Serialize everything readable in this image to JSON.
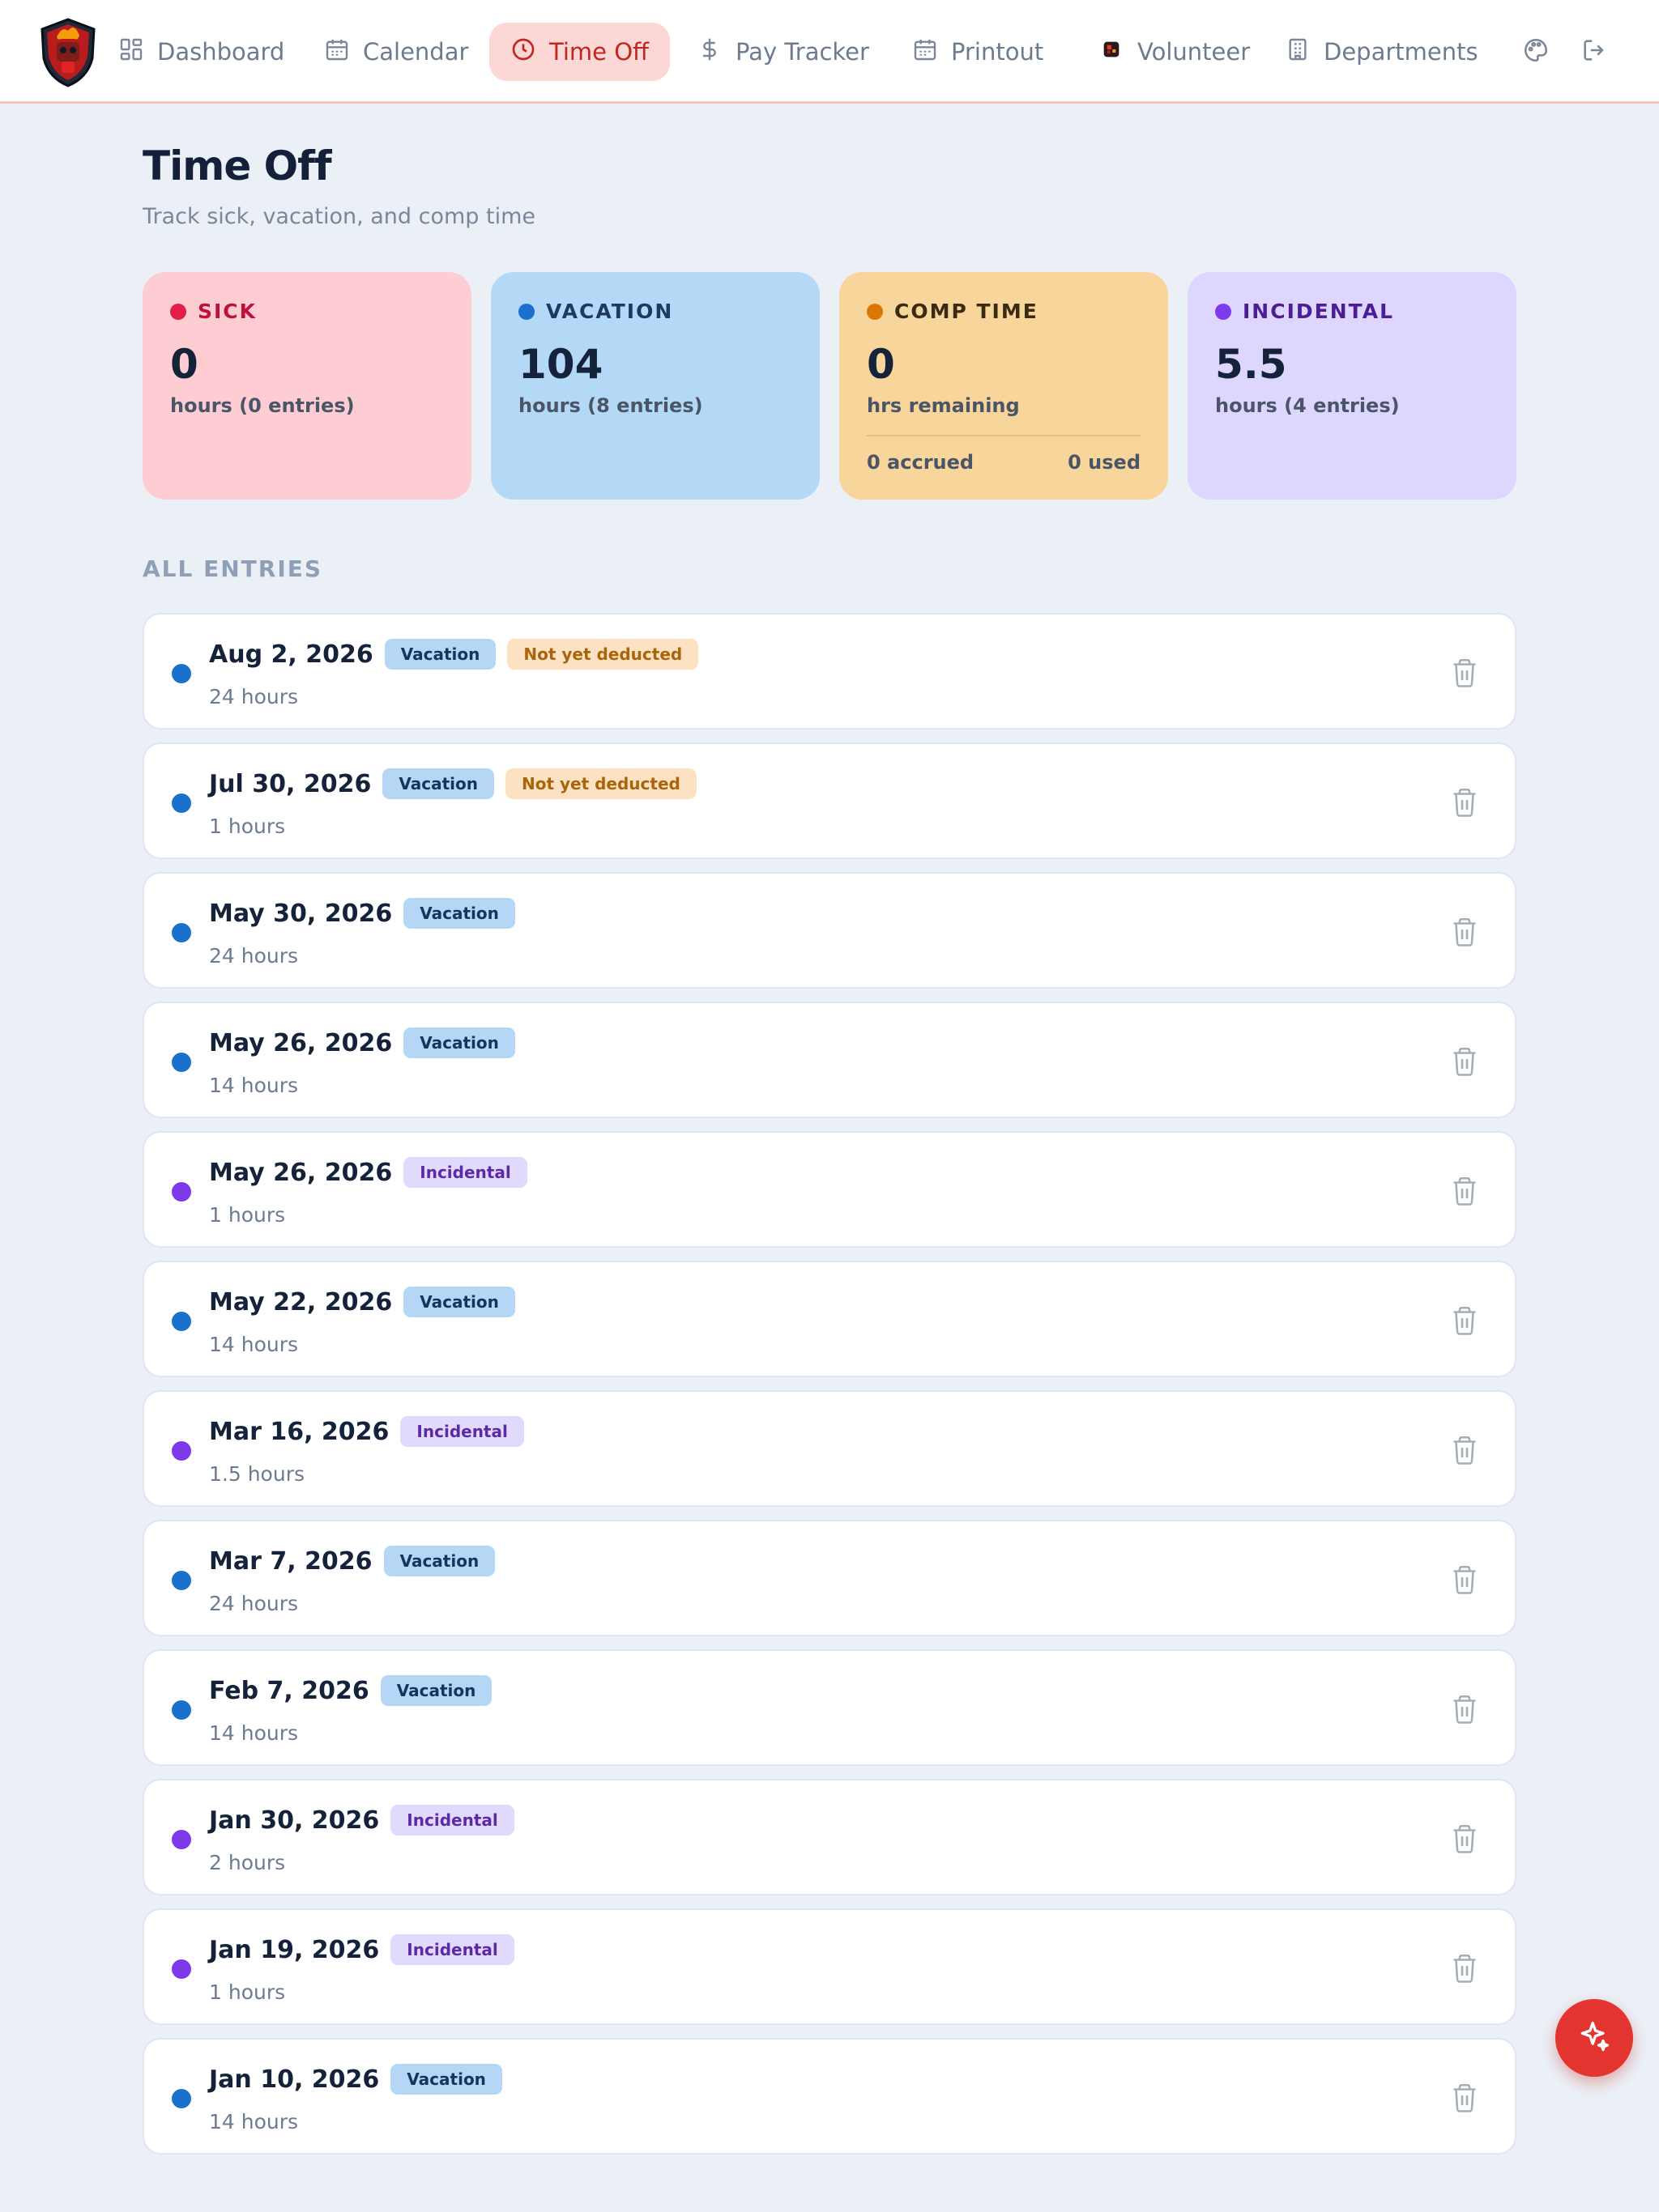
{
  "nav": {
    "items": [
      {
        "label": "Dashboard",
        "icon": "dashboard-icon"
      },
      {
        "label": "Calendar",
        "icon": "calendar-icon"
      },
      {
        "label": "Time Off",
        "icon": "clock-icon",
        "active": true
      },
      {
        "label": "Pay Tracker",
        "icon": "dollar-icon"
      },
      {
        "label": "Printout",
        "icon": "calendar-icon"
      },
      {
        "label": "Volunteer",
        "icon": "volunteer-logo-icon"
      },
      {
        "label": "Departments",
        "icon": "building-icon"
      }
    ],
    "actions": [
      {
        "icon": "palette-icon"
      },
      {
        "icon": "logout-icon"
      }
    ]
  },
  "page": {
    "title": "Time Off",
    "subtitle": "Track sick, vacation, and comp time"
  },
  "cards": {
    "sick": {
      "label": "SICK",
      "value": "0",
      "caption": "hours (0 entries)",
      "color": "#e11d48",
      "bg": "#fecdd3",
      "label_color": "#be123c"
    },
    "vacation": {
      "label": "VACATION",
      "value": "104",
      "caption": "hours (8 entries)",
      "color": "#1d6fcf",
      "bg": "#b4d9f7",
      "label_color": "#1e3a5f"
    },
    "comp": {
      "label": "COMP TIME",
      "value": "0",
      "caption": "hrs remaining",
      "accrued": "0 accrued",
      "used": "0 used",
      "color": "#d97706",
      "bg": "#f8d59a",
      "label_color": "#3a2a10"
    },
    "incidental": {
      "label": "INCIDENTAL",
      "value": "5.5",
      "caption": "hours (4 entries)",
      "color": "#7c3aed",
      "bg": "#ddd6fe",
      "label_color": "#4c1d95"
    }
  },
  "entries_section": {
    "label": "ALL ENTRIES",
    "entries": [
      {
        "date": "Aug 2, 2026",
        "type": "Vacation",
        "status": "Not yet deducted",
        "hours": "24 hours"
      },
      {
        "date": "Jul 30, 2026",
        "type": "Vacation",
        "status": "Not yet deducted",
        "hours": "1 hours"
      },
      {
        "date": "May 30, 2026",
        "type": "Vacation",
        "status": "",
        "hours": "24 hours"
      },
      {
        "date": "May 26, 2026",
        "type": "Vacation",
        "status": "",
        "hours": "14 hours"
      },
      {
        "date": "May 26, 2026",
        "type": "Incidental",
        "status": "",
        "hours": "1 hours"
      },
      {
        "date": "May 22, 2026",
        "type": "Vacation",
        "status": "",
        "hours": "14 hours"
      },
      {
        "date": "Mar 16, 2026",
        "type": "Incidental",
        "status": "",
        "hours": "1.5 hours"
      },
      {
        "date": "Mar 7, 2026",
        "type": "Vacation",
        "status": "",
        "hours": "24 hours"
      },
      {
        "date": "Feb 7, 2026",
        "type": "Vacation",
        "status": "",
        "hours": "14 hours"
      },
      {
        "date": "Jan 30, 2026",
        "type": "Incidental",
        "status": "",
        "hours": "2 hours"
      },
      {
        "date": "Jan 19, 2026",
        "type": "Incidental",
        "status": "",
        "hours": "1 hours"
      },
      {
        "date": "Jan 10, 2026",
        "type": "Vacation",
        "status": "",
        "hours": "14 hours"
      }
    ]
  },
  "fab": {
    "icon": "sparkles-icon"
  },
  "colors": {
    "accent": "#e3342f",
    "vacation_dot": "#1d6fcf",
    "incidental_dot": "#7c3aed"
  }
}
